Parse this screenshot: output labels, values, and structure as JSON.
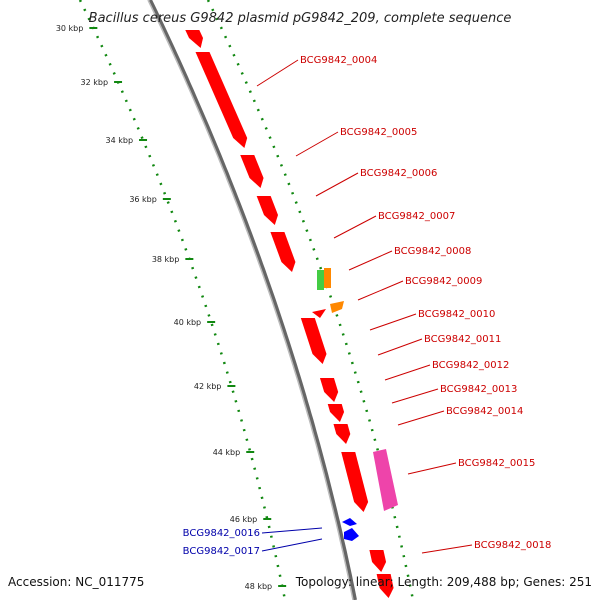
{
  "title": "Bacillus cereus G9842 plasmid pG9842_209, complete sequence",
  "accession": "Accession: NC_011775",
  "summary": "Topology: linear; Length: 209,488 bp; Genes: 251",
  "colors": {
    "forward_gene": "#ff0000",
    "reverse_gene": "#0000ff",
    "backbone": "#888888",
    "dotted_track": "#118811",
    "label_forward": "#cc0000",
    "label_reverse": "#0000aa",
    "orange_feature": "#ff8800",
    "green_feature": "#44cc44",
    "pink_feature": "#ee44aa"
  },
  "ticks": [
    "30 kbp",
    "32 kbp",
    "34 kbp",
    "36 kbp",
    "38 kbp",
    "40 kbp",
    "42 kbp",
    "44 kbp",
    "46 kbp",
    "48 kbp"
  ],
  "gene_labels": [
    {
      "name": "BCG9842_0004",
      "strand": "forward"
    },
    {
      "name": "BCG9842_0005",
      "strand": "forward"
    },
    {
      "name": "BCG9842_0006",
      "strand": "forward"
    },
    {
      "name": "BCG9842_0007",
      "strand": "forward"
    },
    {
      "name": "BCG9842_0008",
      "strand": "forward"
    },
    {
      "name": "BCG9842_0009",
      "strand": "forward"
    },
    {
      "name": "BCG9842_0010",
      "strand": "forward"
    },
    {
      "name": "BCG9842_0011",
      "strand": "forward"
    },
    {
      "name": "BCG9842_0012",
      "strand": "forward"
    },
    {
      "name": "BCG9842_0013",
      "strand": "forward"
    },
    {
      "name": "BCG9842_0014",
      "strand": "forward"
    },
    {
      "name": "BCG9842_0015",
      "strand": "forward"
    },
    {
      "name": "BCG9842_0016",
      "strand": "reverse"
    },
    {
      "name": "BCG9842_0017",
      "strand": "reverse"
    },
    {
      "name": "BCG9842_0018",
      "strand": "forward"
    }
  ]
}
